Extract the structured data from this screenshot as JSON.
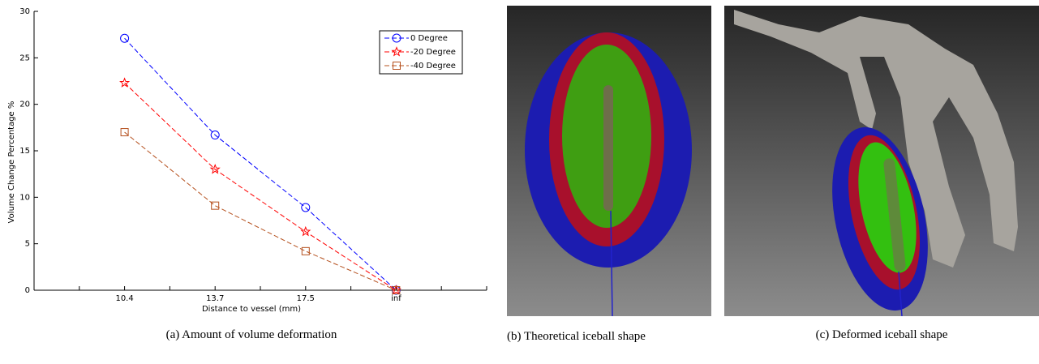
{
  "chart_data": {
    "type": "line",
    "x_label": "Distance to vessel (mm)",
    "y_label": "Volume Change Percentage %",
    "categories": [
      "10.4",
      "13.7",
      "17.5",
      "inf"
    ],
    "series": [
      {
        "name": "0 Degree",
        "color": "#0000ff",
        "marker": "circle",
        "values": [
          27.1,
          16.7,
          8.9,
          0
        ]
      },
      {
        "name": "-20 Degree",
        "color": "#ff0000",
        "marker": "star",
        "values": [
          22.3,
          13.0,
          6.3,
          0
        ]
      },
      {
        "name": "-40 Degree",
        "color": "#b5501e",
        "marker": "square",
        "values": [
          17.0,
          9.1,
          4.2,
          0
        ]
      }
    ],
    "ylim": [
      0,
      30
    ],
    "yticks": [
      0,
      5,
      10,
      15,
      20,
      25,
      30
    ],
    "grid": false,
    "legend": "upper right"
  },
  "captions": [
    "(a) Amount of volume deformation",
    "(b) Theoretical iceball shape",
    "(c) Deformed iceball shape"
  ]
}
